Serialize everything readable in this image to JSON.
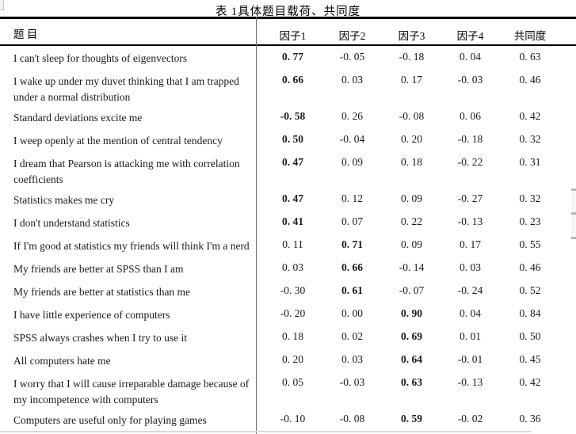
{
  "page": {
    "title": "表 1具体题目载荷、共同度"
  },
  "table": {
    "columns": [
      "题 目",
      "因子1",
      "因子2",
      "因子3",
      "因子4",
      "共同度"
    ],
    "rows": [
      {
        "item": "I can't sleep for thoughts of eigenvectors",
        "values": [
          "0. 77",
          "-0. 05",
          "-0. 18",
          "0. 04",
          "0. 63"
        ],
        "bold": [
          0
        ]
      },
      {
        "item": "I wake up under my duvet thinking that I am trapped under a normal distribution",
        "values": [
          "0. 66",
          "0. 03",
          "0. 17",
          "-0. 03",
          "0. 46"
        ],
        "bold": [
          0
        ]
      },
      {
        "item": "Standard deviations excite me",
        "values": [
          "-0. 58",
          "0. 26",
          "-0. 08",
          "0. 06",
          "0. 42"
        ],
        "bold": [
          0
        ]
      },
      {
        "item": "I weep openly at the mention of central tendency",
        "values": [
          "0. 50",
          "-0. 04",
          "0. 20",
          "-0. 18",
          "0. 32"
        ],
        "bold": [
          0
        ]
      },
      {
        "item": "I dream that Pearson is attacking me with correlation coefficients",
        "values": [
          "0. 47",
          "0. 09",
          "0. 18",
          "-0. 22",
          "0. 31"
        ],
        "bold": [
          0
        ]
      },
      {
        "item": "Statistics makes me cry",
        "values": [
          "0. 47",
          "0. 12",
          "0. 09",
          "-0. 27",
          "0. 32"
        ],
        "bold": [
          0
        ]
      },
      {
        "item": "I don't understand statistics",
        "values": [
          "0. 41",
          "0. 07",
          "0. 22",
          "-0. 13",
          "0. 23"
        ],
        "bold": [
          0
        ]
      },
      {
        "item": "If I'm good at statistics my friends will think I'm a nerd",
        "values": [
          "0. 11",
          "0. 71",
          "0. 09",
          "0. 17",
          "0. 55"
        ],
        "bold": [
          1
        ]
      },
      {
        "item": "My friends are better at SPSS than I am",
        "values": [
          "0. 03",
          "0. 66",
          "-0. 14",
          "0. 03",
          "0. 46"
        ],
        "bold": [
          1
        ]
      },
      {
        "item": "My friends are better at statistics than me",
        "values": [
          "-0. 30",
          "0. 61",
          "-0. 07",
          "-0. 24",
          "0. 52"
        ],
        "bold": [
          1
        ]
      },
      {
        "item": "I have little experience of computers",
        "values": [
          "-0. 20",
          "0. 00",
          "0. 90",
          "0. 04",
          "0. 84"
        ],
        "bold": [
          2
        ]
      },
      {
        "item": "SPSS always crashes when I try to use it",
        "values": [
          "0. 18",
          "0. 02",
          "0. 69",
          "0. 01",
          "0. 50"
        ],
        "bold": [
          2
        ]
      },
      {
        "item": "All computers hate me",
        "values": [
          "0. 20",
          "0. 03",
          "0. 64",
          "-0. 01",
          "0. 45"
        ],
        "bold": [
          2
        ]
      },
      {
        "item": "I worry that I will cause irreparable damage because of my incompetence with computers",
        "values": [
          "0. 05",
          "-0. 03",
          "0. 63",
          "-0. 13",
          "0. 42"
        ],
        "bold": [
          2
        ]
      },
      {
        "item": "Computers are useful only for playing games",
        "values": [
          "-0. 10",
          "-0. 08",
          "0. 59",
          "-0. 02",
          "0. 36"
        ],
        "bold": [
          2
        ]
      }
    ]
  }
}
